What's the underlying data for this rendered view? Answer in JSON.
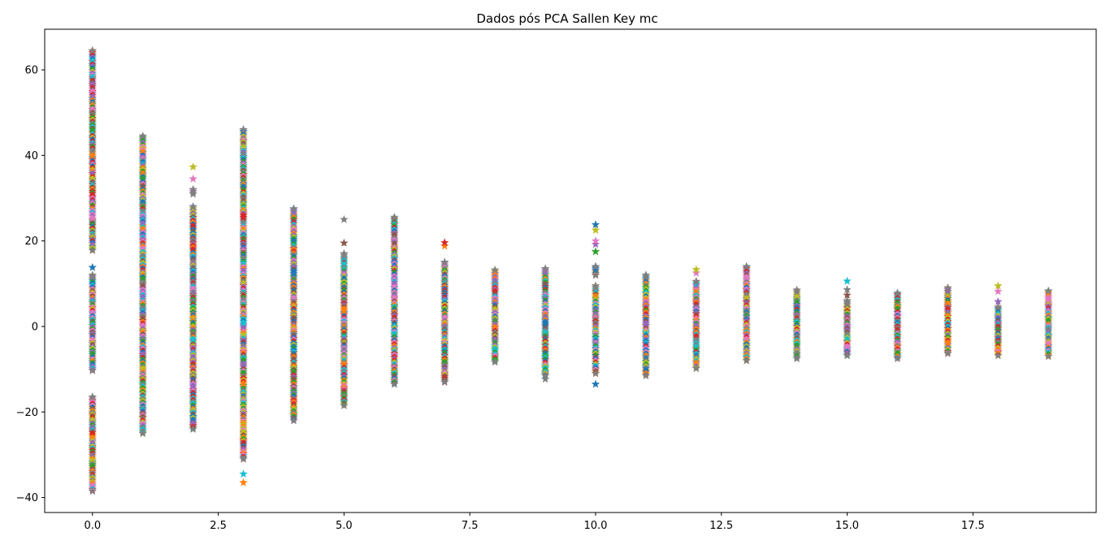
{
  "chart_data": {
    "type": "scatter",
    "title": "Dados pós PCA Sallen Key mc",
    "xlabel": "",
    "ylabel": "",
    "xlim": [
      -0.95,
      19.95
    ],
    "ylim": [
      -43.5,
      69.5
    ],
    "xticks": [
      0.0,
      2.5,
      5.0,
      7.5,
      10.0,
      12.5,
      15.0,
      17.5
    ],
    "xtick_labels": [
      "0.0",
      "2.5",
      "5.0",
      "7.5",
      "10.0",
      "12.5",
      "15.0",
      "17.5"
    ],
    "yticks": [
      -40,
      -20,
      0,
      20,
      40,
      60
    ],
    "ytick_labels": [
      "−40",
      "−20",
      "0",
      "20",
      "40",
      "60"
    ],
    "grid": false,
    "marker": "star",
    "colors": [
      "#1f77b4",
      "#ff7f0e",
      "#2ca02c",
      "#d62728",
      "#9467bd",
      "#8c564b",
      "#e377c2",
      "#7f7f7f",
      "#bcbd22",
      "#17becf"
    ],
    "columns": [
      {
        "x": 0,
        "segments": [
          [
            -38.5,
            -16.5
          ],
          [
            -10.3,
            12.0
          ],
          [
            17.8,
            64.5
          ]
        ],
        "outliers": [
          13.8
        ]
      },
      {
        "x": 1,
        "segments": [
          [
            -25.0,
            44.5
          ]
        ],
        "outliers": []
      },
      {
        "x": 2,
        "segments": [
          [
            -24.0,
            28.0
          ],
          [
            31.0,
            32.0
          ]
        ],
        "outliers": [
          34.5,
          37.3
        ]
      },
      {
        "x": 3,
        "segments": [
          [
            -31.0,
            46.0
          ]
        ],
        "outliers": [
          -34.5,
          -36.5
        ]
      },
      {
        "x": 4,
        "segments": [
          [
            -22.0,
            27.5
          ]
        ],
        "outliers": []
      },
      {
        "x": 5,
        "segments": [
          [
            -18.5,
            17.0
          ]
        ],
        "outliers": [
          19.5,
          25.0
        ]
      },
      {
        "x": 6,
        "segments": [
          [
            -13.5,
            25.5
          ]
        ],
        "outliers": []
      },
      {
        "x": 7,
        "segments": [
          [
            -13.0,
            15.0
          ]
        ],
        "outliers": [
          18.8,
          19.6
        ]
      },
      {
        "x": 8,
        "segments": [
          [
            -8.3,
            13.2
          ]
        ],
        "outliers": []
      },
      {
        "x": 9,
        "segments": [
          [
            -11.5,
            13.5
          ]
        ],
        "outliers": [
          -12.3
        ]
      },
      {
        "x": 10,
        "segments": [
          [
            -11.0,
            9.5
          ],
          [
            12.0,
            14.0
          ]
        ],
        "outliers": [
          -13.5,
          17.5,
          19.2,
          20.0,
          22.5,
          23.8
        ]
      },
      {
        "x": 11,
        "segments": [
          [
            -11.5,
            12.0
          ]
        ],
        "outliers": []
      },
      {
        "x": 12,
        "segments": [
          [
            -9.8,
            10.5
          ]
        ],
        "outliers": [
          12.5,
          13.3
        ]
      },
      {
        "x": 13,
        "segments": [
          [
            -8.0,
            14.0
          ]
        ],
        "outliers": []
      },
      {
        "x": 14,
        "segments": [
          [
            -7.5,
            8.5
          ]
        ],
        "outliers": []
      },
      {
        "x": 15,
        "segments": [
          [
            -6.8,
            6.0
          ]
        ],
        "outliers": [
          7.3,
          8.6,
          10.6
        ]
      },
      {
        "x": 16,
        "segments": [
          [
            -7.5,
            7.8
          ]
        ],
        "outliers": []
      },
      {
        "x": 17,
        "segments": [
          [
            -6.3,
            9.0
          ]
        ],
        "outliers": []
      },
      {
        "x": 18,
        "segments": [
          [
            -6.8,
            4.5
          ]
        ],
        "outliers": [
          5.8,
          8.2,
          9.5
        ]
      },
      {
        "x": 19,
        "segments": [
          [
            -7.0,
            8.3
          ]
        ],
        "outliers": []
      }
    ]
  }
}
